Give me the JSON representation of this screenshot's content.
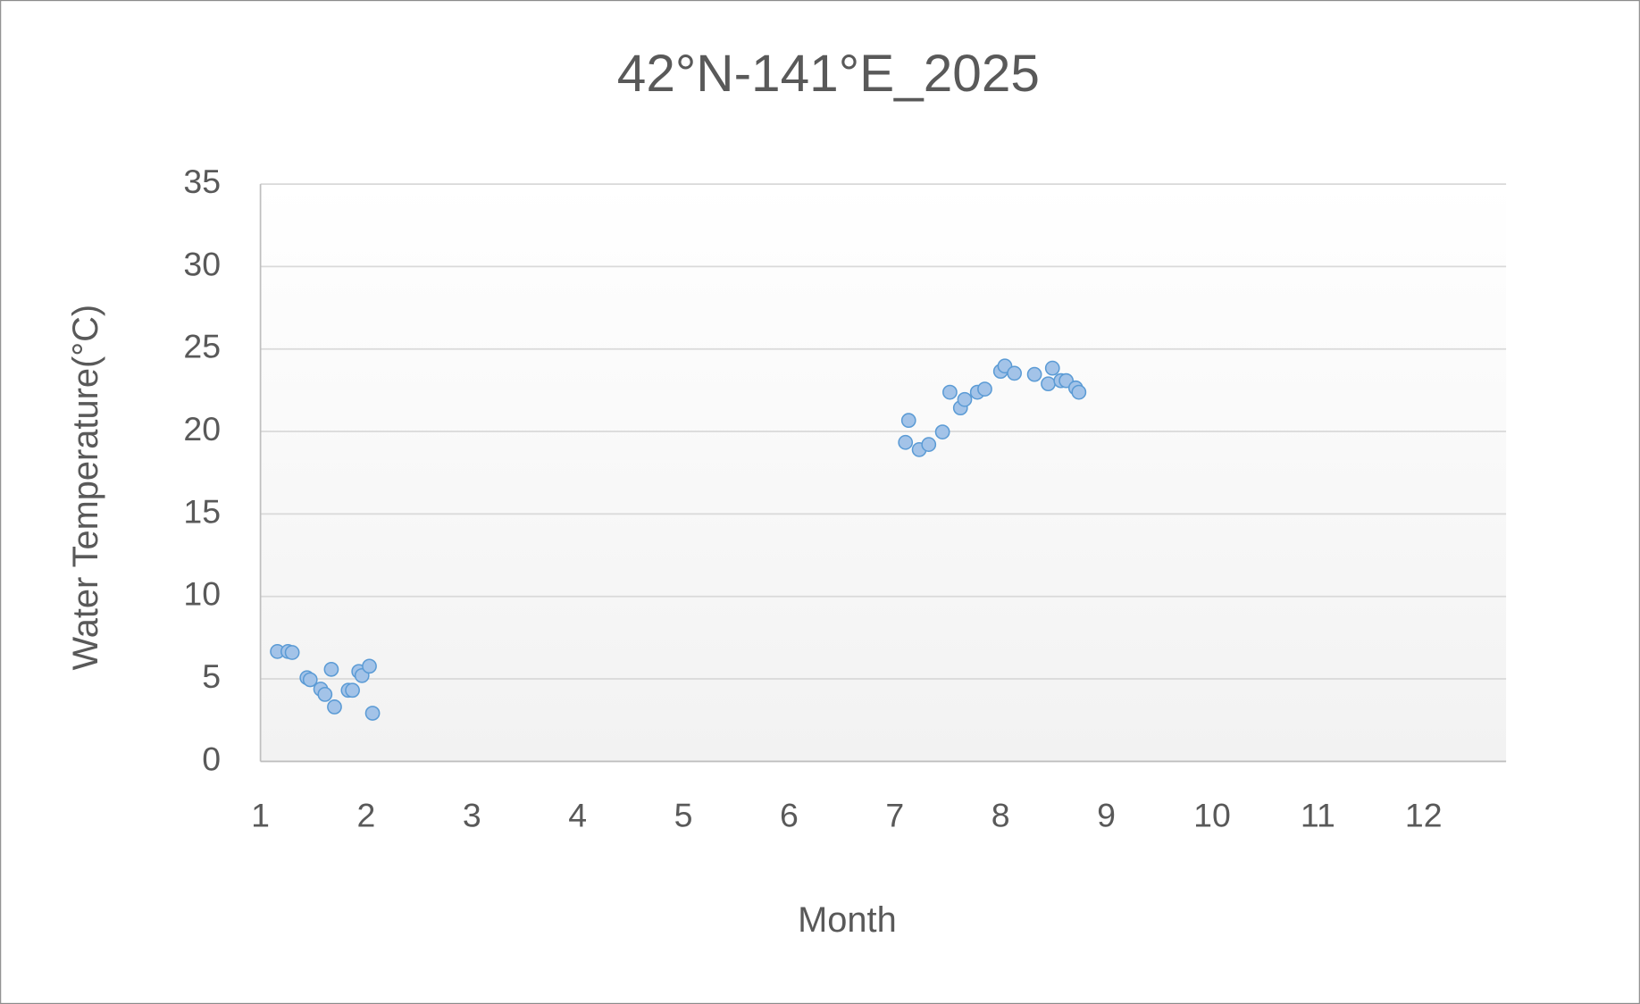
{
  "chart_data": {
    "type": "scatter",
    "title": "42°N-141°E_2025",
    "x_label": "Month",
    "y_label": "Water Temperature(°C)",
    "series": [
      {
        "color": "#a3c3e8",
        "x": [
          1.16,
          1.26,
          1.3,
          1.44,
          1.47,
          1.57,
          1.61,
          1.67,
          1.7,
          1.83,
          1.87,
          1.93,
          1.96,
          2.03,
          2.06,
          7.1,
          7.13,
          7.23,
          7.32,
          7.45,
          7.52,
          7.62,
          7.66,
          7.78,
          7.85,
          8.0,
          8.04,
          8.13,
          8.32,
          8.45,
          8.49,
          8.57,
          8.62,
          8.71,
          8.74
        ],
        "values": [
          6.66,
          6.66,
          6.6,
          5.07,
          4.95,
          4.38,
          4.06,
          5.58,
          3.3,
          4.31,
          4.31,
          5.45,
          5.2,
          5.77,
          2.92,
          19.34,
          20.67,
          18.9,
          19.21,
          19.97,
          22.38,
          21.43,
          21.94,
          22.38,
          22.57,
          23.65,
          23.97,
          23.53,
          23.46,
          22.89,
          23.84,
          23.08,
          23.08,
          22.64,
          22.38
        ]
      }
    ],
    "xlim": [
      1,
      12.78
    ],
    "xticks": [
      1,
      2,
      3,
      4,
      5,
      6,
      7,
      8,
      9,
      10,
      11,
      12
    ],
    "ylim": [
      0,
      35
    ],
    "yticks": [
      0,
      5,
      10,
      15,
      20,
      25,
      30,
      35
    ],
    "grid": true
  }
}
